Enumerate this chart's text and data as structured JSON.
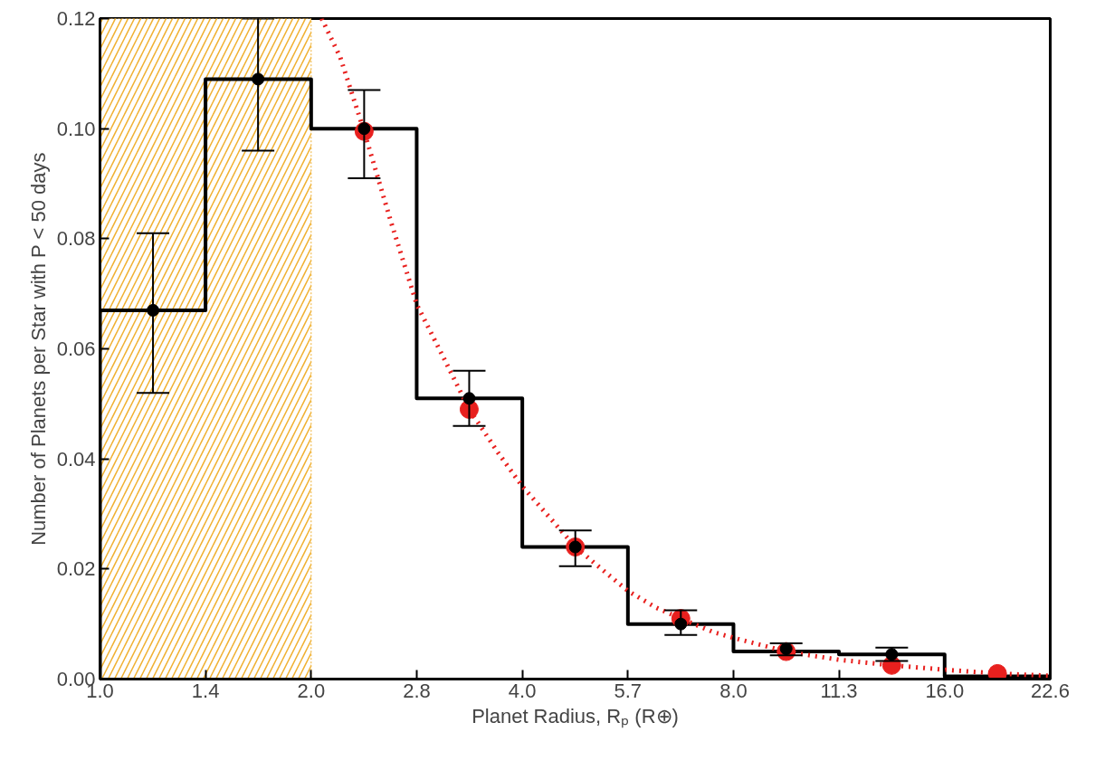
{
  "chart_data": {
    "type": "histogram",
    "xlabel": "Planet Radius, Rₚ (R⊕)",
    "ylabel": "Number of Planets per Star with P < 50 days",
    "bins": [
      1.0,
      1.414,
      2.0,
      2.828,
      4.0,
      5.657,
      8.0,
      11.31,
      16.0,
      22.63
    ],
    "values": [
      0.067,
      0.109,
      0.1,
      0.051,
      0.024,
      0.01,
      0.005,
      0.0045,
      0.0005
    ],
    "color": "#000000",
    "series": [
      {
        "type": "line",
        "color": "#e8201e",
        "line_style": "dotted",
        "x": [
          2.07,
          2.2,
          2.38,
          2.6,
          2.83,
          3.1,
          3.36,
          3.7,
          4.0,
          4.4,
          4.76,
          5.3,
          5.66,
          6.2,
          6.73,
          7.5,
          8.0,
          9.51,
          11.31,
          13.45,
          16.0,
          19.03,
          22.63
        ],
        "values": [
          0.12,
          0.113,
          0.0995,
          0.083,
          0.068,
          0.058,
          0.049,
          0.041,
          0.035,
          0.029,
          0.024,
          0.019,
          0.016,
          0.013,
          0.011,
          0.0085,
          0.0075,
          0.005,
          0.0035,
          0.0025,
          0.0017,
          0.001,
          0.0006
        ]
      },
      {
        "type": "scatter",
        "color": "#e8201e",
        "marker": "circle",
        "x": [
          2.38,
          3.36,
          4.76,
          6.73,
          9.51,
          13.45,
          19.03
        ],
        "values": [
          0.0995,
          0.049,
          0.024,
          0.011,
          0.005,
          0.0025,
          0.001
        ]
      },
      {
        "type": "scatter",
        "color": "#000000",
        "marker": "circle",
        "x": [
          1.19,
          1.68,
          2.38,
          3.36,
          4.76,
          6.73,
          9.51,
          13.45
        ],
        "values": [
          0.067,
          0.109,
          0.1,
          0.051,
          0.024,
          0.01,
          0.0055,
          0.0045
        ],
        "errors": [
          [
            0.052,
            0.081
          ],
          [
            0.096,
            0.12
          ],
          [
            0.091,
            0.107
          ],
          [
            0.046,
            0.056
          ],
          [
            0.0205,
            0.027
          ],
          [
            0.008,
            0.0125
          ],
          [
            0.0043,
            0.0065
          ],
          [
            0.0033,
            0.0057
          ]
        ]
      }
    ],
    "bands": [
      {
        "axis": "x",
        "from": 1.0,
        "to": 2.0,
        "color": "#f0b030"
      }
    ],
    "log": "x",
    "xlim": [
      1.0,
      22.63
    ],
    "xticks": [
      {
        "value": 1.0,
        "label": "1.0"
      },
      {
        "value": 1.414,
        "label": "1.4"
      },
      {
        "value": 2.0,
        "label": "2.0"
      },
      {
        "value": 2.828,
        "label": "2.8"
      },
      {
        "value": 4.0,
        "label": "4.0"
      },
      {
        "value": 5.657,
        "label": "5.7"
      },
      {
        "value": 8.0,
        "label": "8.0"
      },
      {
        "value": 11.31,
        "label": "11.3"
      },
      {
        "value": 16.0,
        "label": "16.0"
      },
      {
        "value": 22.63,
        "label": "22.6"
      }
    ],
    "ylim": [
      0.0,
      0.12
    ],
    "yticks": [
      {
        "value": 0.0,
        "label": "0.00"
      },
      {
        "value": 0.02,
        "label": "0.02"
      },
      {
        "value": 0.04,
        "label": "0.04"
      },
      {
        "value": 0.06,
        "label": "0.06"
      },
      {
        "value": 0.08,
        "label": "0.08"
      },
      {
        "value": 0.1,
        "label": "0.10"
      },
      {
        "value": 0.12,
        "label": "0.12"
      }
    ],
    "grid": false
  }
}
